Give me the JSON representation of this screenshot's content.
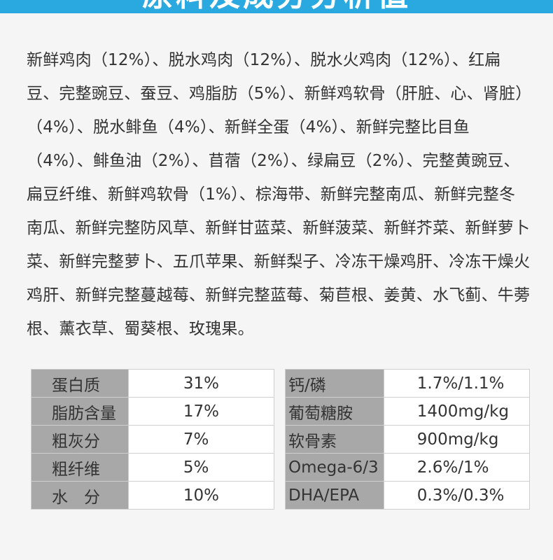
{
  "header": {
    "title": "原料及成分分析值"
  },
  "ingredients": {
    "text": "新鲜鸡肉（12%）、脱水鸡肉（12%）、脱水火鸡肉（12%）、红扁豆、完整豌豆、蚕豆、鸡脂肪（5%）、新鲜鸡软骨（肝脏、心、肾脏）（4%）、脱水鲱鱼（4%）、新鲜全蛋（4%）、新鲜完整比目鱼（4%）、鲱鱼油（2%）、苜蓿（2%）、绿扁豆（2%）、完整黄豌豆、扁豆纤维、新鲜鸡软骨（1%）、棕海带、新鲜完整南瓜、新鲜完整冬南瓜、新鲜完整防风草、新鲜甘蓝菜、新鲜菠菜、新鲜芥菜、新鲜萝卜菜、新鲜完整萝卜、五爪苹果、新鲜梨子、冷冻干燥鸡肝、冷冻干燥火鸡肝、新鲜完整蔓越莓、新鲜完整蓝莓、菊苣根、姜黄、水飞蓟、牛蒡根、薰衣草、蜀葵根、玫瑰果。"
  },
  "nutrition_left": [
    {
      "label": "蛋白质",
      "value": "31%"
    },
    {
      "label": "脂肪含量",
      "value": "17%"
    },
    {
      "label": "粗灰分",
      "value": "7%"
    },
    {
      "label": "粗纤维",
      "value": "5%"
    },
    {
      "label": "水　分",
      "value": "10%"
    }
  ],
  "nutrition_right": [
    {
      "label": "钙/磷",
      "value": "1.7%/1.1%"
    },
    {
      "label": "葡萄糖胺",
      "value": "1400mg/kg"
    },
    {
      "label": "软骨素",
      "value": "900mg/kg"
    },
    {
      "label": "Omega-6/3",
      "value": "2.6%/1%"
    },
    {
      "label": "DHA/EPA",
      "value": "0.3%/0.3%"
    }
  ],
  "colors": {
    "header_band": "#2aa9e0",
    "label_cell": "#a8a8a8",
    "background": "#f5f5f5",
    "text": "#333333"
  }
}
